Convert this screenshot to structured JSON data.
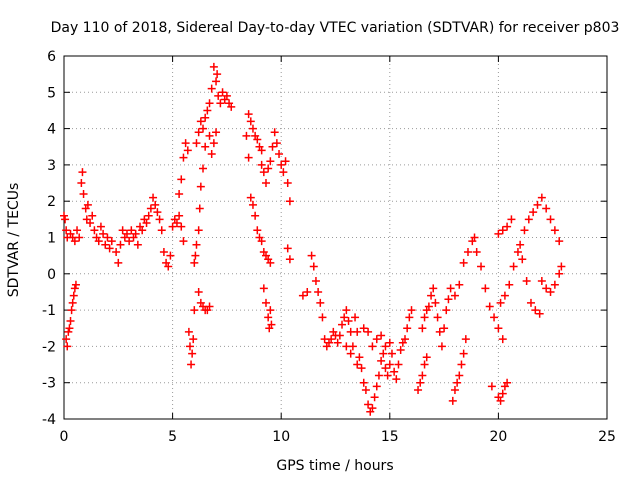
{
  "chart_data": {
    "type": "scatter",
    "title": "Day 110 of 2018, Sidereal Day-to-day VTEC variation (SDTVAR) for receiver p803",
    "xlabel": "GPS time / hours",
    "ylabel": "SDTVAR / TECUs",
    "xlim": [
      0,
      25
    ],
    "ylim": [
      -4,
      6
    ],
    "xticks": [
      0,
      5,
      10,
      15,
      20,
      25
    ],
    "yticks": [
      -4,
      -3,
      -2,
      -1,
      0,
      1,
      2,
      3,
      4,
      5,
      6
    ],
    "grid": true,
    "marker": "+",
    "color": "#ff0000",
    "series": [
      {
        "name": "SDTVAR",
        "points": [
          [
            0.0,
            1.6
          ],
          [
            0.05,
            1.5
          ],
          [
            0.1,
            1.2
          ],
          [
            0.15,
            1.0
          ],
          [
            0.1,
            -1.8
          ],
          [
            0.15,
            -2.0
          ],
          [
            0.2,
            -1.6
          ],
          [
            0.25,
            -1.5
          ],
          [
            0.3,
            -1.3
          ],
          [
            0.35,
            -1.0
          ],
          [
            0.4,
            -0.8
          ],
          [
            0.45,
            -0.6
          ],
          [
            0.5,
            -0.4
          ],
          [
            0.55,
            -0.3
          ],
          [
            0.3,
            1.1
          ],
          [
            0.4,
            1.0
          ],
          [
            0.5,
            0.9
          ],
          [
            0.6,
            1.2
          ],
          [
            0.7,
            1.0
          ],
          [
            0.8,
            2.5
          ],
          [
            0.85,
            2.8
          ],
          [
            0.9,
            2.2
          ],
          [
            1.0,
            1.8
          ],
          [
            1.05,
            1.5
          ],
          [
            1.1,
            1.9
          ],
          [
            1.2,
            1.4
          ],
          [
            1.3,
            1.6
          ],
          [
            1.4,
            1.2
          ],
          [
            1.5,
            1.0
          ],
          [
            1.6,
            0.9
          ],
          [
            1.7,
            1.3
          ],
          [
            1.8,
            1.1
          ],
          [
            1.9,
            0.8
          ],
          [
            2.0,
            1.0
          ],
          [
            2.1,
            0.7
          ],
          [
            2.2,
            0.9
          ],
          [
            2.4,
            0.6
          ],
          [
            2.5,
            0.3
          ],
          [
            2.6,
            0.8
          ],
          [
            2.7,
            1.2
          ],
          [
            2.8,
            1.0
          ],
          [
            2.9,
            1.1
          ],
          [
            3.0,
            0.9
          ],
          [
            3.1,
            1.2
          ],
          [
            3.2,
            1.0
          ],
          [
            3.3,
            1.1
          ],
          [
            3.4,
            0.8
          ],
          [
            3.5,
            1.3
          ],
          [
            3.6,
            1.2
          ],
          [
            3.7,
            1.5
          ],
          [
            3.8,
            1.4
          ],
          [
            3.9,
            1.6
          ],
          [
            4.0,
            1.8
          ],
          [
            4.1,
            2.1
          ],
          [
            4.2,
            1.9
          ],
          [
            4.3,
            1.7
          ],
          [
            4.4,
            1.5
          ],
          [
            4.5,
            1.2
          ],
          [
            4.6,
            0.6
          ],
          [
            4.7,
            0.3
          ],
          [
            4.8,
            0.2
          ],
          [
            4.9,
            0.5
          ],
          [
            5.0,
            1.3
          ],
          [
            5.1,
            1.5
          ],
          [
            5.2,
            1.4
          ],
          [
            5.3,
            1.6
          ],
          [
            5.4,
            1.3
          ],
          [
            5.5,
            0.9
          ],
          [
            5.3,
            2.2
          ],
          [
            5.4,
            2.6
          ],
          [
            5.5,
            3.2
          ],
          [
            5.6,
            3.6
          ],
          [
            5.7,
            3.4
          ],
          [
            5.75,
            -1.6
          ],
          [
            5.8,
            -2.0
          ],
          [
            5.85,
            -2.5
          ],
          [
            5.9,
            -2.2
          ],
          [
            5.95,
            -1.8
          ],
          [
            6.0,
            -1.0
          ],
          [
            6.0,
            0.3
          ],
          [
            6.05,
            0.5
          ],
          [
            6.1,
            0.8
          ],
          [
            6.2,
            1.2
          ],
          [
            6.25,
            1.8
          ],
          [
            6.3,
            2.4
          ],
          [
            6.4,
            2.9
          ],
          [
            6.5,
            3.5
          ],
          [
            6.2,
            -0.5
          ],
          [
            6.3,
            -0.8
          ],
          [
            6.4,
            -0.9
          ],
          [
            6.5,
            -1.0
          ],
          [
            6.6,
            -1.0
          ],
          [
            6.7,
            -0.9
          ],
          [
            6.1,
            3.6
          ],
          [
            6.2,
            3.9
          ],
          [
            6.3,
            4.2
          ],
          [
            6.4,
            4.0
          ],
          [
            6.5,
            4.3
          ],
          [
            6.6,
            4.5
          ],
          [
            6.7,
            4.7
          ],
          [
            6.8,
            5.1
          ],
          [
            6.9,
            5.7
          ],
          [
            7.0,
            5.3
          ],
          [
            7.05,
            5.5
          ],
          [
            7.1,
            4.9
          ],
          [
            7.2,
            4.7
          ],
          [
            7.3,
            5.0
          ],
          [
            7.4,
            4.8
          ],
          [
            7.5,
            4.9
          ],
          [
            7.6,
            4.7
          ],
          [
            7.7,
            4.6
          ],
          [
            6.7,
            3.8
          ],
          [
            6.8,
            3.3
          ],
          [
            6.9,
            3.6
          ],
          [
            7.0,
            3.9
          ],
          [
            8.5,
            4.4
          ],
          [
            8.6,
            4.2
          ],
          [
            8.7,
            4.0
          ],
          [
            8.8,
            3.8
          ],
          [
            8.9,
            3.7
          ],
          [
            9.0,
            3.5
          ],
          [
            9.1,
            3.4
          ],
          [
            8.4,
            3.8
          ],
          [
            8.5,
            3.2
          ],
          [
            8.6,
            2.1
          ],
          [
            8.7,
            1.9
          ],
          [
            8.8,
            1.6
          ],
          [
            8.9,
            1.2
          ],
          [
            9.0,
            1.0
          ],
          [
            9.1,
            0.9
          ],
          [
            9.2,
            0.6
          ],
          [
            9.3,
            0.5
          ],
          [
            9.4,
            0.4
          ],
          [
            9.5,
            0.3
          ],
          [
            9.1,
            3.0
          ],
          [
            9.2,
            2.8
          ],
          [
            9.3,
            2.5
          ],
          [
            9.4,
            2.9
          ],
          [
            9.5,
            3.1
          ],
          [
            9.6,
            3.5
          ],
          [
            9.7,
            3.9
          ],
          [
            9.8,
            3.6
          ],
          [
            9.9,
            3.3
          ],
          [
            10.0,
            3.0
          ],
          [
            10.1,
            2.8
          ],
          [
            10.2,
            3.1
          ],
          [
            10.3,
            2.5
          ],
          [
            10.4,
            2.0
          ],
          [
            10.3,
            0.7
          ],
          [
            10.4,
            0.4
          ],
          [
            9.2,
            -0.4
          ],
          [
            9.3,
            -0.8
          ],
          [
            9.4,
            -1.2
          ],
          [
            9.45,
            -1.5
          ],
          [
            9.5,
            -1.0
          ],
          [
            9.55,
            -1.4
          ],
          [
            11.0,
            -0.6
          ],
          [
            11.2,
            -0.5
          ],
          [
            11.4,
            0.5
          ],
          [
            11.5,
            0.2
          ],
          [
            11.6,
            -0.2
          ],
          [
            11.7,
            -0.5
          ],
          [
            11.8,
            -0.8
          ],
          [
            11.9,
            -1.2
          ],
          [
            12.0,
            -1.8
          ],
          [
            12.1,
            -2.0
          ],
          [
            12.2,
            -1.9
          ],
          [
            12.3,
            -1.8
          ],
          [
            12.4,
            -1.6
          ],
          [
            12.5,
            -1.7
          ],
          [
            12.6,
            -1.9
          ],
          [
            12.7,
            -1.7
          ],
          [
            12.8,
            -1.4
          ],
          [
            12.9,
            -1.2
          ],
          [
            13.0,
            -1.0
          ],
          [
            13.1,
            -1.3
          ],
          [
            13.2,
            -1.6
          ],
          [
            13.3,
            -2.0
          ],
          [
            13.4,
            -1.2
          ],
          [
            13.5,
            -1.6
          ],
          [
            13.6,
            -2.3
          ],
          [
            13.7,
            -2.6
          ],
          [
            13.8,
            -3.0
          ],
          [
            13.9,
            -3.2
          ],
          [
            14.0,
            -3.6
          ],
          [
            14.1,
            -3.8
          ],
          [
            14.2,
            -3.7
          ],
          [
            14.3,
            -3.4
          ],
          [
            14.4,
            -3.1
          ],
          [
            14.5,
            -2.8
          ],
          [
            14.6,
            -2.4
          ],
          [
            14.7,
            -2.2
          ],
          [
            14.8,
            -2.6
          ],
          [
            14.9,
            -2.8
          ],
          [
            15.0,
            -2.5
          ],
          [
            15.1,
            -2.2
          ],
          [
            15.2,
            -2.7
          ],
          [
            15.3,
            -2.9
          ],
          [
            15.4,
            -2.5
          ],
          [
            15.5,
            -2.1
          ],
          [
            15.6,
            -1.9
          ],
          [
            15.7,
            -1.8
          ],
          [
            15.8,
            -1.5
          ],
          [
            15.9,
            -1.2
          ],
          [
            16.0,
            -1.0
          ],
          [
            13.0,
            -2.0
          ],
          [
            13.2,
            -2.2
          ],
          [
            13.5,
            -2.5
          ],
          [
            13.8,
            -1.5
          ],
          [
            14.0,
            -1.6
          ],
          [
            14.2,
            -2.0
          ],
          [
            14.4,
            -1.8
          ],
          [
            14.6,
            -1.7
          ],
          [
            14.8,
            -2.0
          ],
          [
            15.0,
            -1.9
          ],
          [
            16.3,
            -3.2
          ],
          [
            16.4,
            -3.0
          ],
          [
            16.5,
            -2.8
          ],
          [
            16.6,
            -2.5
          ],
          [
            16.7,
            -2.3
          ],
          [
            16.5,
            -1.5
          ],
          [
            16.6,
            -1.2
          ],
          [
            16.7,
            -1.0
          ],
          [
            16.8,
            -0.9
          ],
          [
            16.9,
            -0.6
          ],
          [
            17.0,
            -0.4
          ],
          [
            17.1,
            -0.8
          ],
          [
            17.2,
            -1.2
          ],
          [
            17.3,
            -1.6
          ],
          [
            17.4,
            -2.0
          ],
          [
            17.5,
            -1.5
          ],
          [
            17.6,
            -1.0
          ],
          [
            17.7,
            -0.7
          ],
          [
            17.8,
            -0.4
          ],
          [
            17.9,
            -3.5
          ],
          [
            18.0,
            -3.2
          ],
          [
            18.1,
            -3.0
          ],
          [
            18.2,
            -2.8
          ],
          [
            18.3,
            -2.5
          ],
          [
            18.4,
            -2.2
          ],
          [
            18.5,
            -1.8
          ],
          [
            18.0,
            -0.6
          ],
          [
            18.2,
            -0.3
          ],
          [
            18.4,
            0.3
          ],
          [
            18.6,
            0.6
          ],
          [
            18.8,
            0.9
          ],
          [
            18.9,
            1.0
          ],
          [
            19.0,
            0.6
          ],
          [
            19.2,
            0.2
          ],
          [
            19.4,
            -0.4
          ],
          [
            19.6,
            -0.9
          ],
          [
            19.8,
            -1.2
          ],
          [
            20.0,
            -1.5
          ],
          [
            20.2,
            -1.8
          ],
          [
            20.0,
            -3.4
          ],
          [
            20.1,
            -3.5
          ],
          [
            20.2,
            -3.3
          ],
          [
            20.3,
            -3.1
          ],
          [
            20.4,
            -3.0
          ],
          [
            19.7,
            -3.1
          ],
          [
            20.1,
            -0.8
          ],
          [
            20.3,
            -0.6
          ],
          [
            20.5,
            -0.3
          ],
          [
            20.7,
            0.2
          ],
          [
            20.9,
            0.6
          ],
          [
            21.1,
            0.4
          ],
          [
            21.3,
            -0.2
          ],
          [
            21.5,
            -0.8
          ],
          [
            21.7,
            -1.0
          ],
          [
            21.9,
            -1.1
          ],
          [
            21.0,
            0.8
          ],
          [
            21.2,
            1.2
          ],
          [
            21.4,
            1.5
          ],
          [
            21.6,
            1.7
          ],
          [
            21.8,
            1.9
          ],
          [
            22.0,
            2.1
          ],
          [
            22.2,
            1.8
          ],
          [
            22.4,
            1.5
          ],
          [
            22.6,
            1.2
          ],
          [
            22.8,
            0.9
          ],
          [
            22.0,
            -0.2
          ],
          [
            22.2,
            -0.4
          ],
          [
            22.4,
            -0.5
          ],
          [
            22.6,
            -0.3
          ],
          [
            22.8,
            0.0
          ],
          [
            22.9,
            0.2
          ],
          [
            20.0,
            1.1
          ],
          [
            20.2,
            1.2
          ],
          [
            20.4,
            1.3
          ],
          [
            20.6,
            1.5
          ]
        ]
      }
    ]
  }
}
